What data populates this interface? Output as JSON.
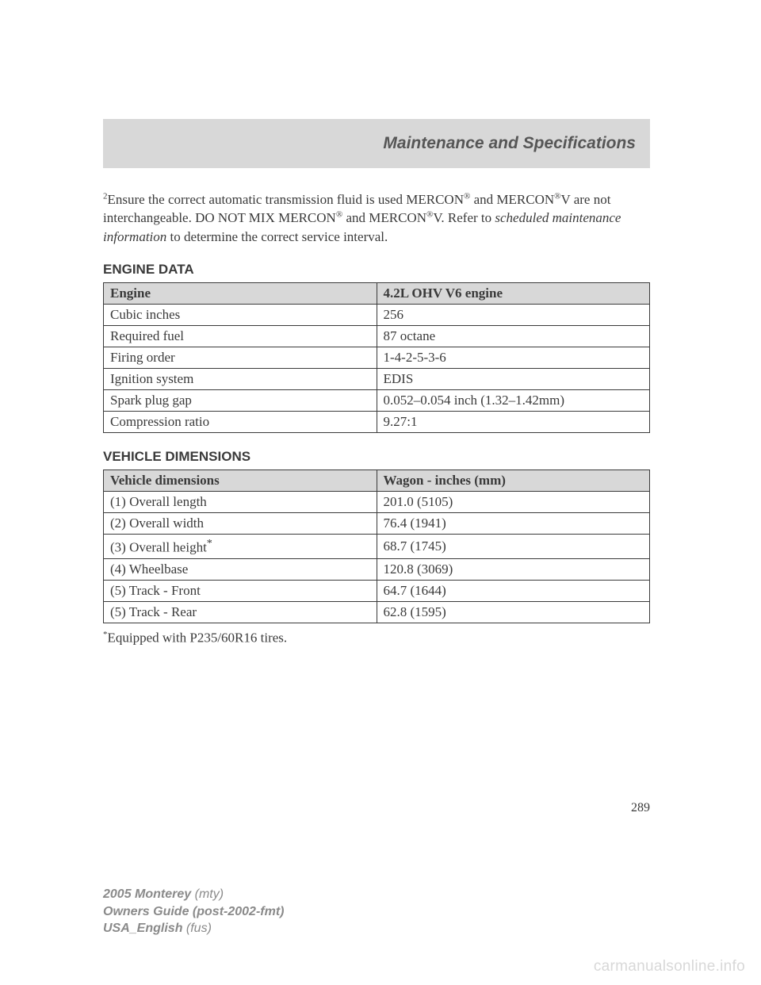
{
  "header": {
    "title": "Maintenance and Specifications"
  },
  "note": {
    "sup": "2",
    "text1": "Ensure the correct automatic transmission fluid is used MERCON",
    "reg1": "®",
    "text2": " and MERCON",
    "reg2": "®",
    "text3": "V are not interchangeable. DO NOT MIX MERCON",
    "reg3": "®",
    "text4": " and MERCON",
    "reg4": "®",
    "text5": "V. Refer to ",
    "italic": "scheduled maintenance information",
    "text6": " to determine the correct service interval."
  },
  "engine": {
    "heading": "ENGINE DATA",
    "col1": "Engine",
    "col2": "4.2L OHV V6 engine",
    "rows": [
      {
        "k": "Cubic inches",
        "v": "256"
      },
      {
        "k": "Required fuel",
        "v": "87 octane"
      },
      {
        "k": "Firing order",
        "v": "1-4-2-5-3-6"
      },
      {
        "k": "Ignition system",
        "v": "EDIS"
      },
      {
        "k": "Spark plug gap",
        "v": "0.052–0.054 inch (1.32–1.42mm)"
      },
      {
        "k": "Compression ratio",
        "v": "9.27:1"
      }
    ]
  },
  "dimensions": {
    "heading": "VEHICLE DIMENSIONS",
    "col1": "Vehicle dimensions",
    "col2": "Wagon - inches (mm)",
    "rows": [
      {
        "k": "(1) Overall length",
        "v": "201.0 (5105)"
      },
      {
        "k": "(2) Overall width",
        "v": "76.4 (1941)"
      },
      {
        "k": "(3) Overall height",
        "sup": "*",
        "v": "68.7 (1745)"
      },
      {
        "k": "(4) Wheelbase",
        "v": "120.8 (3069)"
      },
      {
        "k": "(5) Track - Front",
        "v": "64.7 (1644)"
      },
      {
        "k": "(5) Track - Rear",
        "v": "62.8 (1595)"
      }
    ]
  },
  "footnote": {
    "sup": "*",
    "text": "Equipped with P235/60R16 tires."
  },
  "pagenum": "289",
  "footer": {
    "l1a": "2005 Monterey ",
    "l1b": "(mty)",
    "l2a": "Owners Guide (post-2002-fmt)",
    "l3a": "USA_English ",
    "l3b": "(fus)"
  },
  "watermark": "carmanualsonline.info",
  "style": {
    "header_bg": "#d8d8d8",
    "th_bg": "#d8d8d8",
    "border": "#3a3a3a",
    "text": "#3a3a3a",
    "footer": "#8a8a8a",
    "watermark": "#d8d8d8"
  }
}
